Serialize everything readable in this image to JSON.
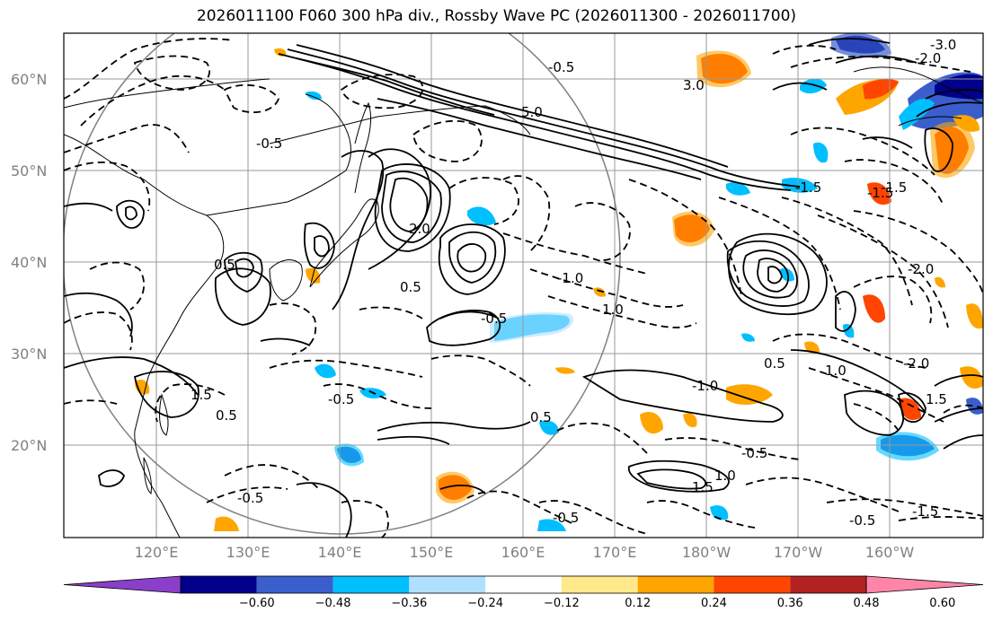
{
  "title": "2026011100 F060 300 hPa div., Rossby Wave PC (2026011300 - 2026011700)",
  "lat_ticks": [
    "60°N",
    "50°N",
    "40°N",
    "30°N",
    "20°N"
  ],
  "lon_ticks": [
    "120°E",
    "130°E",
    "140°E",
    "150°E",
    "160°E",
    "170°E",
    "180°W",
    "170°W",
    "160°W"
  ],
  "colorbar": {
    "labels": [
      "−0.60",
      "−0.48",
      "−0.36",
      "−0.24",
      "−0.12",
      "0.12",
      "0.24",
      "0.36",
      "0.48",
      "0.60"
    ],
    "colors": [
      "#8a3fc9",
      "#00008b",
      "#3a5fcd",
      "#00bfff",
      "#b0e0ff",
      "#ffffff",
      "#ffe98a",
      "#ffa500",
      "#ff4500",
      "#b22222",
      "#ff85a8"
    ]
  },
  "contour_labels": [
    "-3.0",
    "-2.0",
    "-1.5",
    "-0.5",
    "0.5",
    "-0.5",
    "-1.0",
    "1.0",
    "-2.0",
    "0.5",
    "1.5",
    "-0.5",
    "0.5",
    "-1.0",
    "0.5",
    "-0.5",
    "1.0",
    "1.5",
    "-0.5",
    "-1.5",
    "-0.5",
    "1.0",
    "0.5",
    "-0.5",
    "-1.5",
    "-2.0",
    "1.5",
    "-1.5",
    "2.0",
    "5.0",
    "3.0",
    "-0.5"
  ]
}
